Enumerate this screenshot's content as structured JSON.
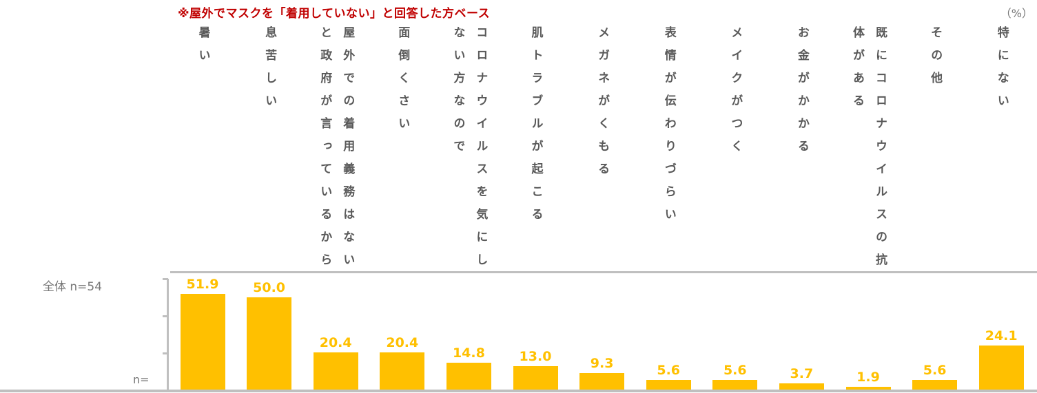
{
  "chart_data": {
    "type": "bar",
    "title": "※屋外でマスクを「着用していない」と回答した方ベース",
    "unit": "（%）",
    "row_label": "全体 n=54",
    "n_label": "n=",
    "categories": [
      "暑い",
      "息苦しい",
      "屋外での着用義務はないと政府が言っているから",
      "面倒くさい",
      "コロナウイルスを気にしない方なので",
      "肌トラブルが起こる",
      "メガネがくもる",
      "表情が伝わりづらい",
      "メイクがつく",
      "お金がかかる",
      "既にコロナウイルスの抗体がある",
      "その他",
      "特にない"
    ],
    "values": [
      51.9,
      50.0,
      20.4,
      20.4,
      14.8,
      13.0,
      9.3,
      5.6,
      5.6,
      3.7,
      1.9,
      5.6,
      24.1
    ],
    "value_labels": [
      "51.9",
      "50.0",
      "20.4",
      "20.4",
      "14.8",
      "13.0",
      "9.3",
      "5.6",
      "5.6",
      "3.7",
      "1.9",
      "5.6",
      "24.1"
    ],
    "ylim": [
      0,
      60
    ],
    "grid": false,
    "bar_color": "#ffc000",
    "title_color": "#c00000"
  }
}
